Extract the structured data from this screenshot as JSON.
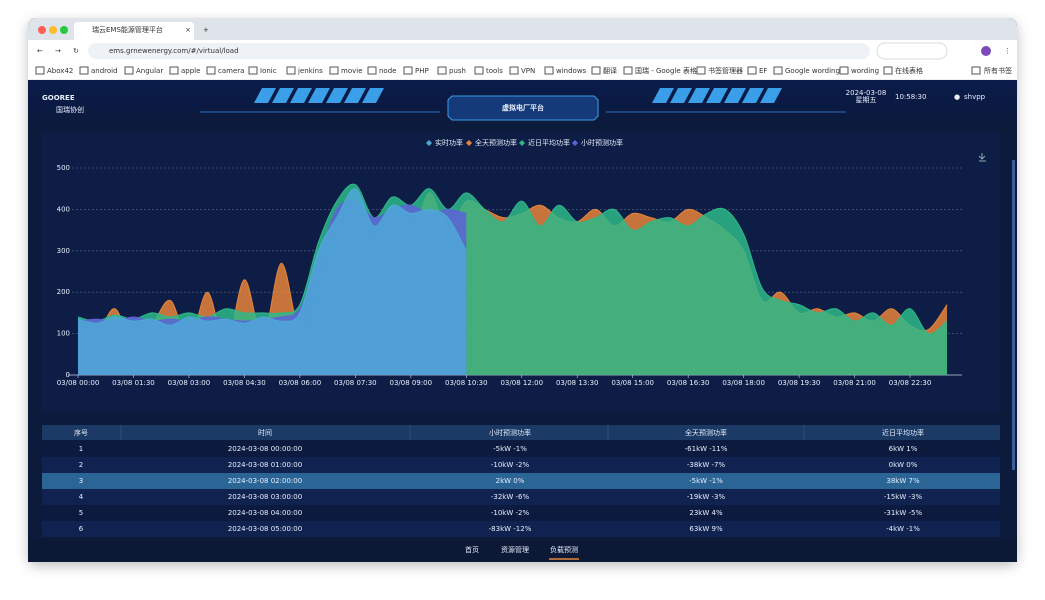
{
  "browser": {
    "tab_title": "瑞云EMS能源管理平台",
    "url": "ems.grnewenergy.com/#/virtual/load",
    "bookmarks": [
      "Abox42",
      "android",
      "Angular",
      "apple",
      "camera",
      "Ionic",
      "jenkins",
      "movie",
      "node",
      "PHP",
      "push",
      "tools",
      "VPN",
      "windows",
      "翻译",
      "国瑞 - Google 表格",
      "书签管理器",
      "EF",
      "Google wording",
      "wording",
      "在线表格"
    ],
    "all_bookmarks": "所有书签"
  },
  "header": {
    "logo": "GOOREE",
    "logo_sub": "国瑞协创",
    "title": "虚拟电厂平台",
    "date": "2024-03-08",
    "weekday": "星期五",
    "time": "10:58:30",
    "user": "shvpp"
  },
  "chart_data": {
    "type": "area",
    "categories": [
      "03/08 00:00",
      null,
      null,
      "03/08 01:30",
      null,
      null,
      "03/08 03:00",
      null,
      null,
      "03/08 04:30",
      null,
      null,
      "03/08 06:00",
      null,
      null,
      "03/08 07:30",
      null,
      null,
      "03/08 09:00",
      null,
      null,
      "03/08 10:30",
      null,
      null,
      "03/08 12:00",
      null,
      null,
      "03/08 13:30",
      null,
      null,
      "03/08 15:00",
      null,
      null,
      "03/08 16:30",
      null,
      null,
      "03/08 18:00",
      null,
      null,
      "03/08 19:30",
      null,
      null,
      "03/08 21:00",
      null,
      null,
      "03/08 22:30",
      null,
      null
    ],
    "series": [
      {
        "name": "全天预测功率",
        "color": "#e8843a",
        "values": [
          120,
          100,
          160,
          70,
          120,
          180,
          80,
          200,
          70,
          230,
          90,
          270,
          100,
          150,
          330,
          380,
          300,
          400,
          330,
          440,
          350,
          420,
          400,
          380,
          390,
          410,
          380,
          370,
          400,
          360,
          390,
          380,
          370,
          400,
          380,
          350,
          300,
          180,
          200,
          150,
          160,
          140,
          150,
          130,
          160,
          120,
          110,
          170
        ]
      },
      {
        "name": "近日平均功率",
        "color": "#2eb88a",
        "values": [
          140,
          130,
          145,
          135,
          150,
          140,
          150,
          140,
          160,
          150,
          150,
          150,
          170,
          320,
          420,
          460,
          380,
          430,
          410,
          450,
          400,
          440,
          400,
          370,
          420,
          360,
          410,
          370,
          380,
          400,
          350,
          370,
          380,
          360,
          390,
          400,
          340,
          210,
          180,
          170,
          150,
          160,
          130,
          150,
          120,
          160,
          100,
          130
        ]
      },
      {
        "name": "小时预测功率",
        "color": "#5d63d8",
        "values": [
          130,
          135,
          130,
          140,
          130,
          135,
          130,
          140,
          135,
          130,
          135,
          140,
          160,
          280,
          400,
          420,
          380,
          400,
          410,
          390,
          400,
          390,
          null,
          null,
          null,
          null,
          null,
          null,
          null,
          null,
          null,
          null,
          null,
          null,
          null,
          null,
          null,
          null,
          null,
          null,
          null,
          null,
          null,
          null,
          null,
          null,
          null,
          null
        ]
      },
      {
        "name": "实时功率",
        "color": "#4fa8d8",
        "values": [
          135,
          125,
          140,
          130,
          135,
          120,
          140,
          130,
          135,
          125,
          140,
          130,
          150,
          300,
          380,
          450,
          360,
          410,
          390,
          400,
          380,
          300,
          null,
          null,
          null,
          null,
          null,
          null,
          null,
          null,
          null,
          null,
          null,
          null,
          null,
          null,
          null,
          null,
          null,
          null,
          null,
          null,
          null,
          null,
          null,
          null,
          null,
          null
        ]
      }
    ],
    "legend_order": [
      "实时功率",
      "全天预测功率",
      "近日平均功率",
      "小时预测功率"
    ],
    "ylim": [
      0,
      500
    ],
    "yticks": [
      0,
      100,
      200,
      300,
      400,
      500
    ],
    "grid": true
  },
  "table": {
    "columns": [
      "序号",
      "时间",
      "小时预测功率",
      "全天预测功率",
      "近日平均功率"
    ],
    "rows": [
      [
        "1",
        "2024-03-08 00:00:00",
        "-5kW -1%",
        "-61kW -11%",
        "6kW 1%"
      ],
      [
        "2",
        "2024-03-08 01:00:00",
        "-10kW -2%",
        "-38kW -7%",
        "0kW 0%"
      ],
      [
        "3",
        "2024-03-08 02:00:00",
        "2kW 0%",
        "-5kW -1%",
        "38kW 7%"
      ],
      [
        "4",
        "2024-03-08 03:00:00",
        "-32kW -6%",
        "-19kW -3%",
        "-15kW -3%"
      ],
      [
        "5",
        "2024-03-08 04:00:00",
        "-10kW -2%",
        "23kW 4%",
        "-31kW -5%"
      ],
      [
        "6",
        "2024-03-08 05:00:00",
        "-83kW -12%",
        "63kW 9%",
        "-4kW -1%"
      ]
    ]
  },
  "nav": {
    "items": [
      "首页",
      "资源管理",
      "负载预测"
    ]
  }
}
